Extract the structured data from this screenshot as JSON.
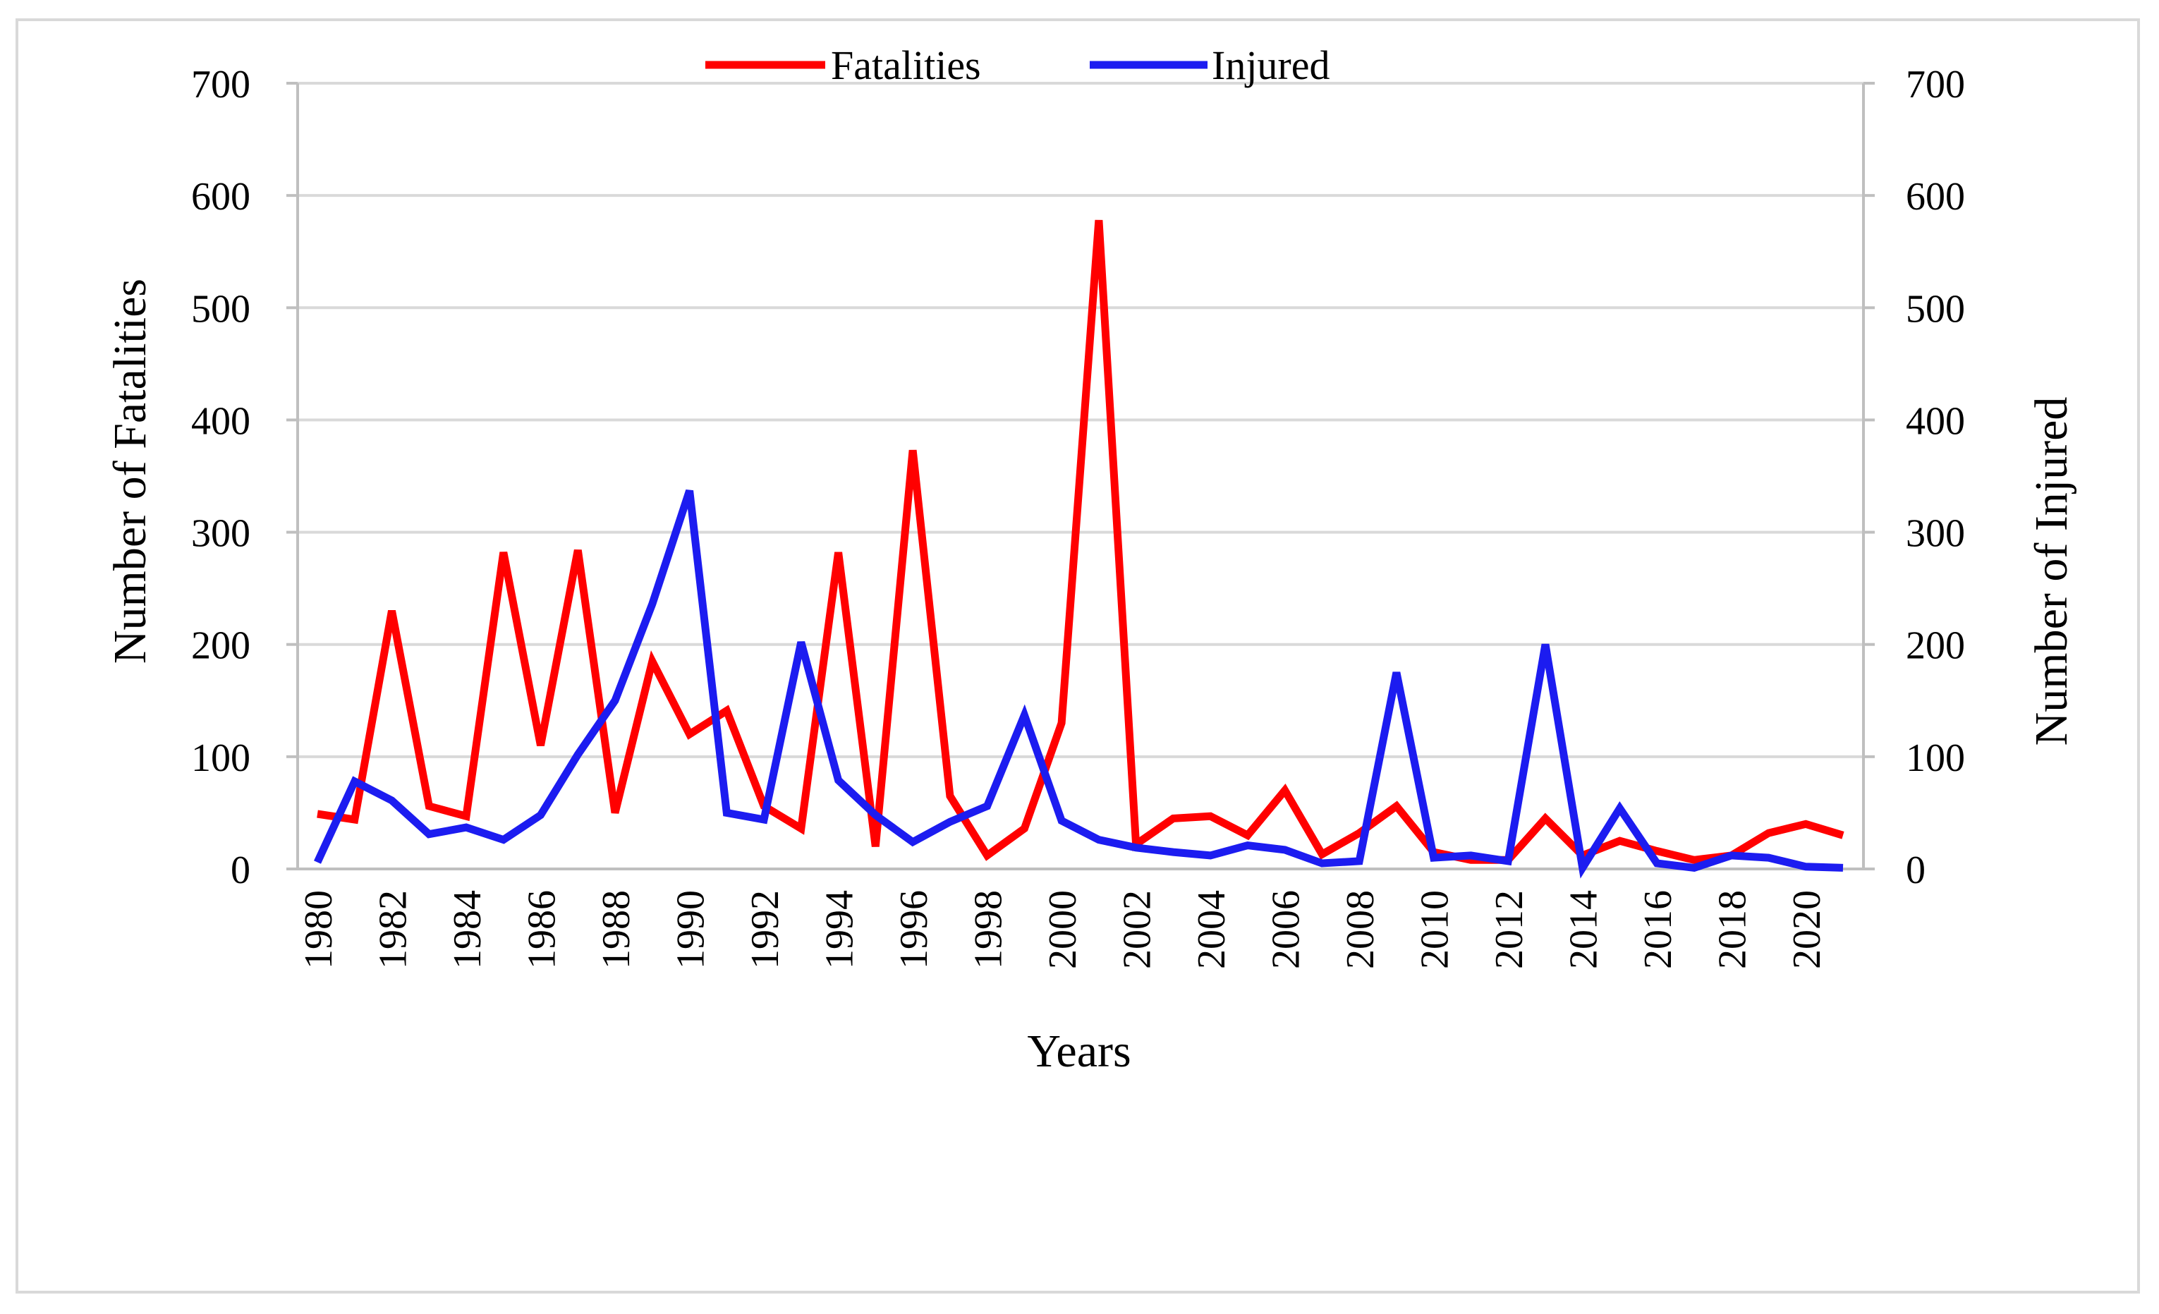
{
  "chart_data": {
    "type": "line",
    "title": "",
    "xlabel": "Years",
    "ylabel": "Number of Fatalities",
    "y2label": "Number of Injured",
    "ylim": [
      0,
      700
    ],
    "y2lim": [
      0,
      700
    ],
    "yticks": [
      0,
      100,
      200,
      300,
      400,
      500,
      600,
      700
    ],
    "gridlines": "horizontal",
    "legend_position": "top-center",
    "x": [
      1980,
      1981,
      1982,
      1983,
      1984,
      1985,
      1986,
      1987,
      1988,
      1989,
      1990,
      1991,
      1992,
      1993,
      1994,
      1995,
      1996,
      1997,
      1998,
      1999,
      2000,
      2001,
      2002,
      2003,
      2004,
      2005,
      2006,
      2007,
      2008,
      2009,
      2010,
      2011,
      2012,
      2013,
      2014,
      2015,
      2016,
      2017,
      2018,
      2019,
      2020,
      2021
    ],
    "x_tick_labels": [
      "1980",
      "1982",
      "1984",
      "1986",
      "1988",
      "1990",
      "1992",
      "1994",
      "1996",
      "1998",
      "2000",
      "2002",
      "2004",
      "2006",
      "2008",
      "2010",
      "2012",
      "2014",
      "2016",
      "2018",
      "2020"
    ],
    "series": [
      {
        "name": "Fatalities",
        "axis": "left",
        "color": "#ff0000",
        "values": [
          49,
          44,
          230,
          56,
          47,
          282,
          110,
          284,
          50,
          185,
          120,
          141,
          56,
          36,
          282,
          20,
          373,
          65,
          12,
          36,
          130,
          578,
          22,
          45,
          47,
          30,
          70,
          13,
          32,
          56,
          15,
          8,
          8,
          45,
          12,
          25,
          16,
          8,
          12,
          32,
          40,
          30
        ]
      },
      {
        "name": "Injured",
        "axis": "right",
        "color": "#1c1cf0",
        "values": [
          6,
          78,
          61,
          31,
          37,
          26,
          48,
          102,
          150,
          236,
          337,
          50,
          44,
          202,
          79,
          48,
          24,
          42,
          56,
          137,
          43,
          26,
          19,
          15,
          12,
          21,
          17,
          5,
          7,
          175,
          10,
          12,
          7,
          200,
          1,
          54,
          5,
          1,
          12,
          10,
          2,
          1
        ]
      }
    ]
  }
}
